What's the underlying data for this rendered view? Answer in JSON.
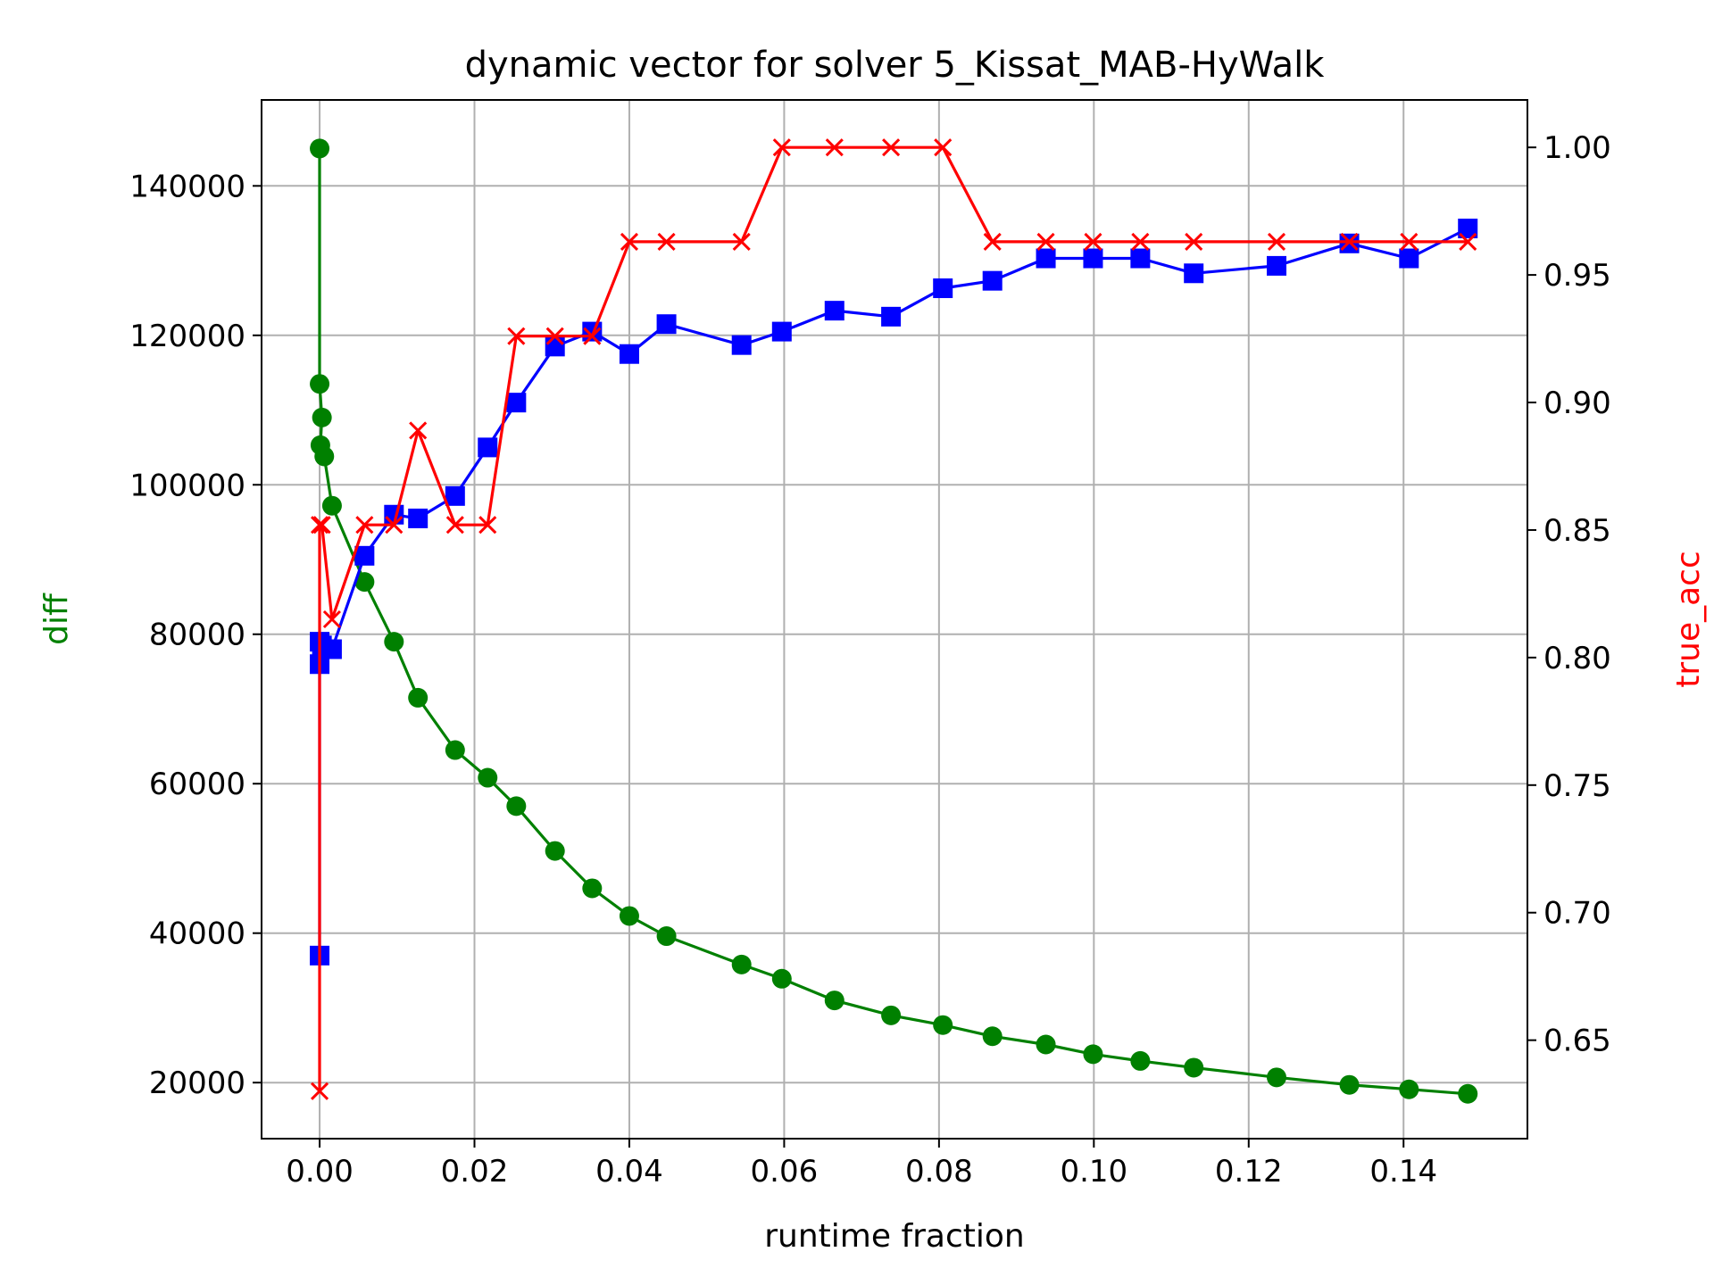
{
  "chart_data": {
    "type": "line",
    "title": "dynamic vector for solver 5_Kissat_MAB-HyWalk",
    "xlabel": "runtime fraction",
    "ylabel_left": "diff",
    "ylabel_right": "true_acc",
    "xlim": [
      -0.0075,
      0.156
    ],
    "ylim_left": [
      12500,
      151500
    ],
    "ylim_right": [
      0.6114,
      1.0186
    ],
    "x_ticks": [
      0.0,
      0.02,
      0.04,
      0.06,
      0.08,
      0.1,
      0.12,
      0.14
    ],
    "x_tick_labels": [
      "0.00",
      "0.02",
      "0.04",
      "0.06",
      "0.08",
      "0.10",
      "0.12",
      "0.14"
    ],
    "y_left_ticks": [
      20000,
      40000,
      60000,
      80000,
      100000,
      120000,
      140000
    ],
    "y_left_tick_labels": [
      "20000",
      "40000",
      "60000",
      "80000",
      "100000",
      "120000",
      "140000"
    ],
    "y_right_ticks": [
      0.65,
      0.7,
      0.75,
      0.8,
      0.85,
      0.9,
      0.95,
      1.0
    ],
    "y_right_tick_labels": [
      "0.65",
      "0.70",
      "0.75",
      "0.80",
      "0.85",
      "0.90",
      "0.95",
      "1.00"
    ],
    "grid": true,
    "colors": {
      "diff": "#008000",
      "blue_series": "#0000ff",
      "true_acc": "#ff0000",
      "left_axis_label": "#008000",
      "right_axis_label": "#ff0000"
    },
    "series": [
      {
        "axis": "left",
        "marker": "circle",
        "color": "#008000",
        "x": [
          0.0,
          0.0,
          0.0003,
          0.0001,
          0.0006,
          0.0016,
          0.0058,
          0.0096,
          0.0127,
          0.0175,
          0.0217,
          0.0254,
          0.0304,
          0.0352,
          0.04,
          0.0448,
          0.0545,
          0.0597,
          0.0665,
          0.0738,
          0.0805,
          0.0869,
          0.0938,
          0.0999,
          0.106,
          0.1129,
          0.1236,
          0.133,
          0.1407,
          0.1483
        ],
        "values": [
          145000,
          113500,
          109000,
          105300,
          103800,
          97200,
          87000,
          79000,
          71500,
          64500,
          60800,
          57000,
          51000,
          46000,
          42300,
          39600,
          35800,
          33900,
          31000,
          29000,
          27700,
          26200,
          25100,
          23800,
          22900,
          22000,
          20700,
          19700,
          19100,
          18500
        ]
      },
      {
        "axis": "left",
        "marker": "square",
        "color": "#0000ff",
        "x": [
          0.0,
          0.0,
          0.0,
          0.0003,
          0.0016,
          0.0058,
          0.0096,
          0.0127,
          0.0175,
          0.0217,
          0.0254,
          0.0304,
          0.0352,
          0.04,
          0.0448,
          0.0545,
          0.0597,
          0.0665,
          0.0738,
          0.0805,
          0.0869,
          0.0938,
          0.0999,
          0.106,
          0.1129,
          0.1236,
          0.133,
          0.1407,
          0.1483
        ],
        "values": [
          37000,
          76000,
          79000,
          78500,
          78000,
          90500,
          96000,
          95500,
          98500,
          105000,
          111000,
          118500,
          120500,
          117500,
          121500,
          118700,
          120500,
          123300,
          122500,
          126300,
          127300,
          130300,
          130300,
          130300,
          128300,
          129300,
          132300,
          130300,
          134300
        ]
      },
      {
        "axis": "right",
        "marker": "x",
        "color": "#ff0000",
        "x": [
          0.0,
          0.0,
          0.0003,
          0.0016,
          0.0058,
          0.0096,
          0.0127,
          0.0175,
          0.0217,
          0.0254,
          0.0304,
          0.0352,
          0.04,
          0.0448,
          0.0545,
          0.0597,
          0.0665,
          0.0738,
          0.0805,
          0.0869,
          0.0938,
          0.0999,
          0.106,
          0.1129,
          0.1236,
          0.133,
          0.1407,
          0.1483
        ],
        "values": [
          0.63,
          0.852,
          0.852,
          0.815,
          0.852,
          0.852,
          0.889,
          0.852,
          0.852,
          0.926,
          0.926,
          0.926,
          0.963,
          0.963,
          0.963,
          1.0,
          1.0,
          1.0,
          1.0,
          0.963,
          0.963,
          0.963,
          0.963,
          0.963,
          0.963,
          0.963,
          0.963,
          0.963
        ]
      }
    ]
  }
}
